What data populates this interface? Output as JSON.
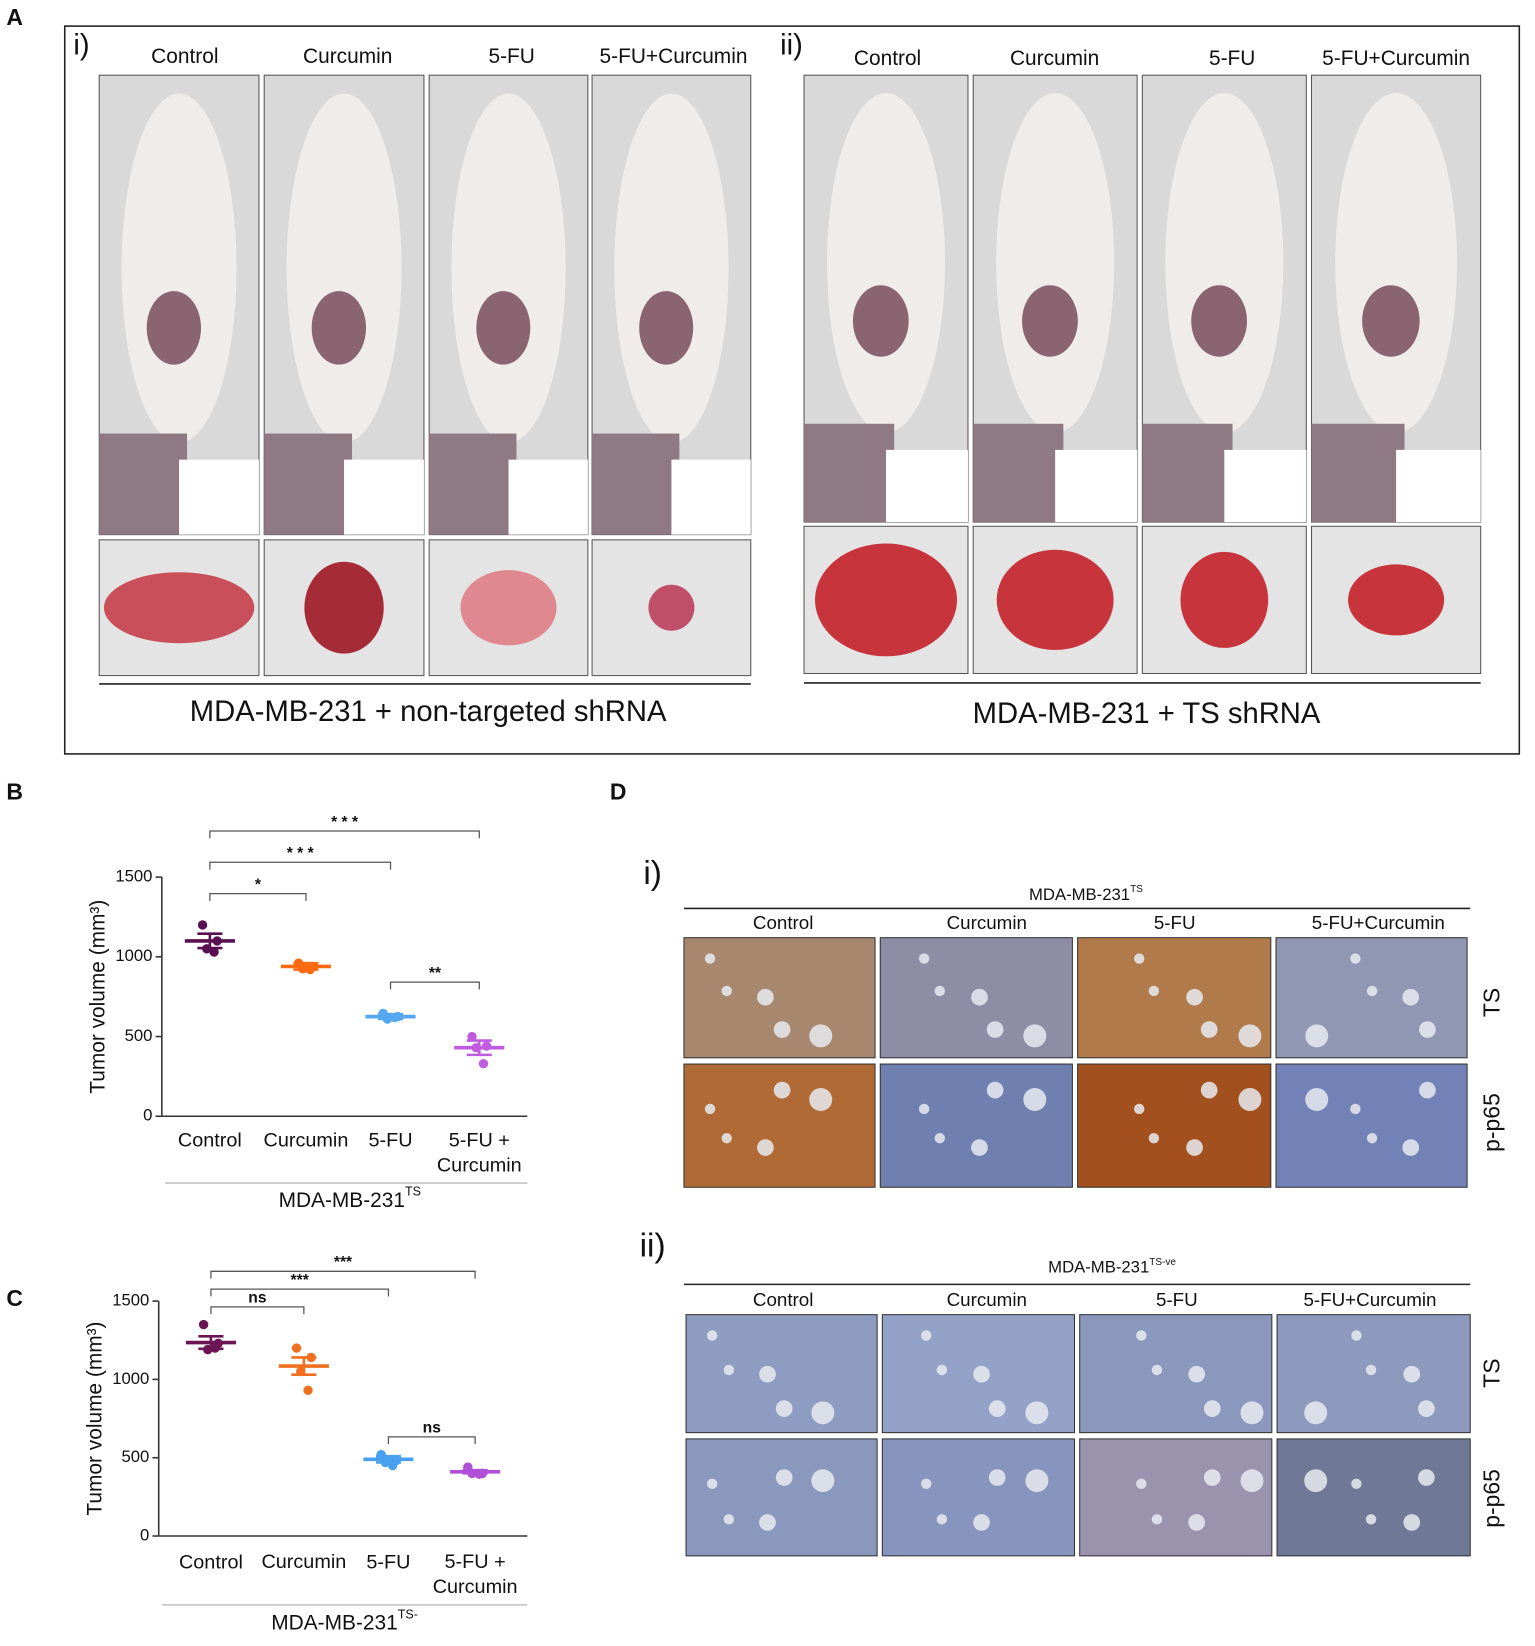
{
  "panel_a": {
    "label": "A",
    "groups": [
      {
        "label": "i)",
        "columns": [
          "Control",
          "Curcumin",
          "5-FU",
          "5-FU+Curcumin"
        ],
        "caption": "MDA-MB-231 + non-targeted shRNA"
      },
      {
        "label": "ii)",
        "columns": [
          "Control",
          "Curcumin",
          "5-FU",
          "5-FU+Curcumin"
        ],
        "caption": "MDA-MB-231 + TS shRNA"
      }
    ]
  },
  "chart_data": [
    {
      "type": "dotplot",
      "panel_label": "B",
      "y_label": "Tumor volume (mm³)",
      "categories": [
        "Control",
        "Curcumin",
        "5-FU",
        "5-FU + Curcumin"
      ],
      "group_label": "MDA-MB-231",
      "group_label_sup": "TS",
      "colors": [
        "#5a1050",
        "#ff6a13",
        "#55a8f0",
        "#c05ce0"
      ],
      "values": [
        1100,
        940,
        625,
        430
      ],
      "errors": [
        45,
        20,
        15,
        45
      ],
      "points": [
        [
          1200,
          1100,
          1050,
          1030
        ],
        [
          960,
          940,
          925,
          920
        ],
        [
          645,
          625,
          610,
          620
        ],
        [
          500,
          440,
          430,
          330
        ]
      ],
      "ylim": [
        0,
        1500
      ],
      "yticks": [
        0,
        500,
        1000,
        1500
      ],
      "comparisons": [
        {
          "pair": [
            0,
            1
          ],
          "label": "*"
        },
        {
          "pair": [
            2,
            3
          ],
          "label": "**"
        },
        {
          "pair": [
            0,
            2
          ],
          "label": "* * *"
        },
        {
          "pair": [
            0,
            3
          ],
          "label": "* * *"
        }
      ]
    },
    {
      "type": "dotplot",
      "panel_label": "C",
      "y_label": "Tumor volume (mm³)",
      "categories": [
        "Control",
        "Curcumin",
        "5-FU",
        "5-FU + Curcumin"
      ],
      "group_label": "MDA-MB-231",
      "group_label_sup": "TS-",
      "colors": [
        "#6b1555",
        "#f07020",
        "#4aa0f0",
        "#b050d8"
      ],
      "values": [
        1235,
        1085,
        490,
        410
      ],
      "errors": [
        40,
        55,
        20,
        10
      ],
      "points": [
        [
          1350,
          1230,
          1190,
          1200
        ],
        [
          1200,
          1140,
          1050,
          930
        ],
        [
          520,
          480,
          470,
          450
        ],
        [
          440,
          400,
          400,
          395
        ]
      ],
      "ylim": [
        0,
        1500
      ],
      "yticks": [
        0,
        500,
        1000,
        1500
      ],
      "comparisons": [
        {
          "pair": [
            0,
            1
          ],
          "label": "ns"
        },
        {
          "pair": [
            2,
            3
          ],
          "label": "ns"
        },
        {
          "pair": [
            0,
            2
          ],
          "label": "***"
        },
        {
          "pair": [
            0,
            3
          ],
          "label": "***"
        }
      ]
    }
  ],
  "panel_d": {
    "label": "D",
    "groups": [
      {
        "label": "i)",
        "title": "MDA-MB-231",
        "title_sup": "TS",
        "columns": [
          "Control",
          "Curcumin",
          "5-FU",
          "5-FU+Curcumin"
        ],
        "rows": [
          "TS",
          "p-p65"
        ]
      },
      {
        "label": "ii)",
        "title": "MDA-MB-231",
        "title_sup": "TS-ve",
        "columns": [
          "Control",
          "Curcumin",
          "5-FU",
          "5-FU+Curcumin"
        ],
        "rows": [
          "TS",
          "p-p65"
        ]
      }
    ]
  }
}
